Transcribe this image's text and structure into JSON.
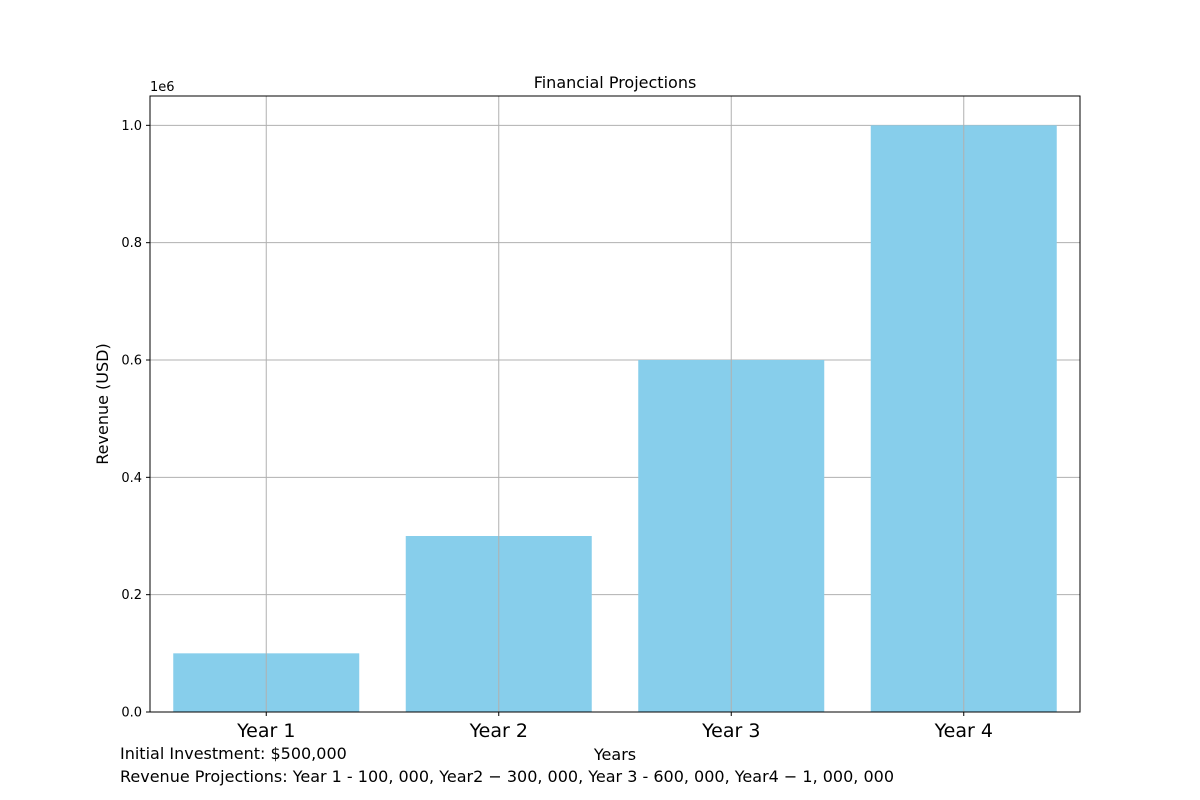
{
  "chart_data": {
    "type": "bar",
    "title": "Financial Projections",
    "xlabel": "Years",
    "ylabel": "Revenue (USD)",
    "y_offset_label": "1e6",
    "categories": [
      "Year 1",
      "Year 2",
      "Year 3",
      "Year 4"
    ],
    "values": [
      100000,
      300000,
      600000,
      1000000
    ],
    "ylim": [
      0,
      1050000
    ],
    "yticks": [
      0,
      200000,
      400000,
      600000,
      800000,
      1000000
    ],
    "ytick_labels": [
      "0.0",
      "0.2",
      "0.4",
      "0.6",
      "0.8",
      "1.0"
    ],
    "grid": true,
    "bar_color": "#87CEEB",
    "grid_color": "#b0b0b0"
  },
  "notes": {
    "investment": "Initial Investment: $500,000",
    "projections": "Revenue Projections: Year 1 - 100, 000, Year2 − 300, 000, Year 3 - 600, 000, Year4 − 1, 000, 000"
  }
}
